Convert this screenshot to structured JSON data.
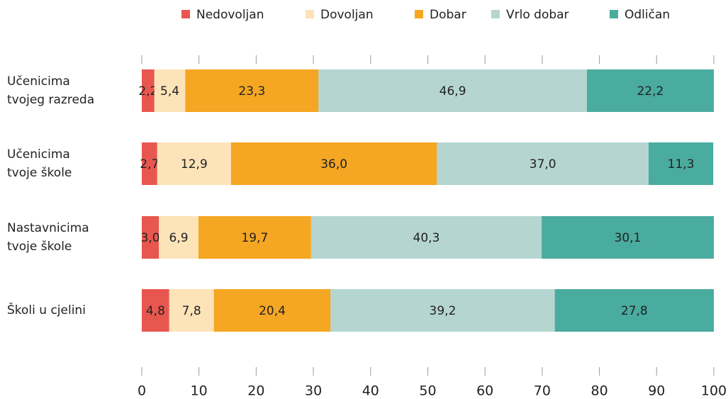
{
  "chart_data": {
    "type": "stacked-barh",
    "categories": [
      "Učenicima\ntvojeg razreda",
      "Učenicima\ntvoje škole",
      "Nastavnicima\ntvoje škole",
      "Školi u cjelini"
    ],
    "series": [
      {
        "name": "Nedovoljan",
        "color": "#e8574f",
        "values": [
          2.2,
          2.7,
          3.0,
          4.8
        ],
        "value_labels": [
          "2,2",
          "2,7",
          "3,0",
          "4,8"
        ]
      },
      {
        "name": "Dovoljan",
        "color": "#fde3b8",
        "values": [
          5.4,
          12.9,
          6.9,
          7.8
        ],
        "value_labels": [
          "5,4",
          "12,9",
          "6,9",
          "7,8"
        ]
      },
      {
        "name": "Dobar",
        "color": "#f5a623",
        "values": [
          23.3,
          36.0,
          19.7,
          20.4
        ],
        "value_labels": [
          "23,3",
          "36,0",
          "19,7",
          "20,4"
        ]
      },
      {
        "name": "Vrlo dobar",
        "color": "#b5d6d0",
        "values": [
          46.9,
          37.0,
          40.3,
          39.2
        ],
        "value_labels": [
          "46,9",
          "37,0",
          "40,3",
          "39,2"
        ]
      },
      {
        "name": "Odličan",
        "color": "#4aab9f",
        "values": [
          22.2,
          11.3,
          30.1,
          27.8
        ],
        "value_labels": [
          "22,2",
          "11,3",
          "30,1",
          "27,8"
        ]
      }
    ],
    "xlim": [
      0,
      100
    ],
    "xticks": [
      0,
      10,
      20,
      30,
      40,
      50,
      60,
      70,
      80,
      90,
      100
    ],
    "legend": "top"
  }
}
